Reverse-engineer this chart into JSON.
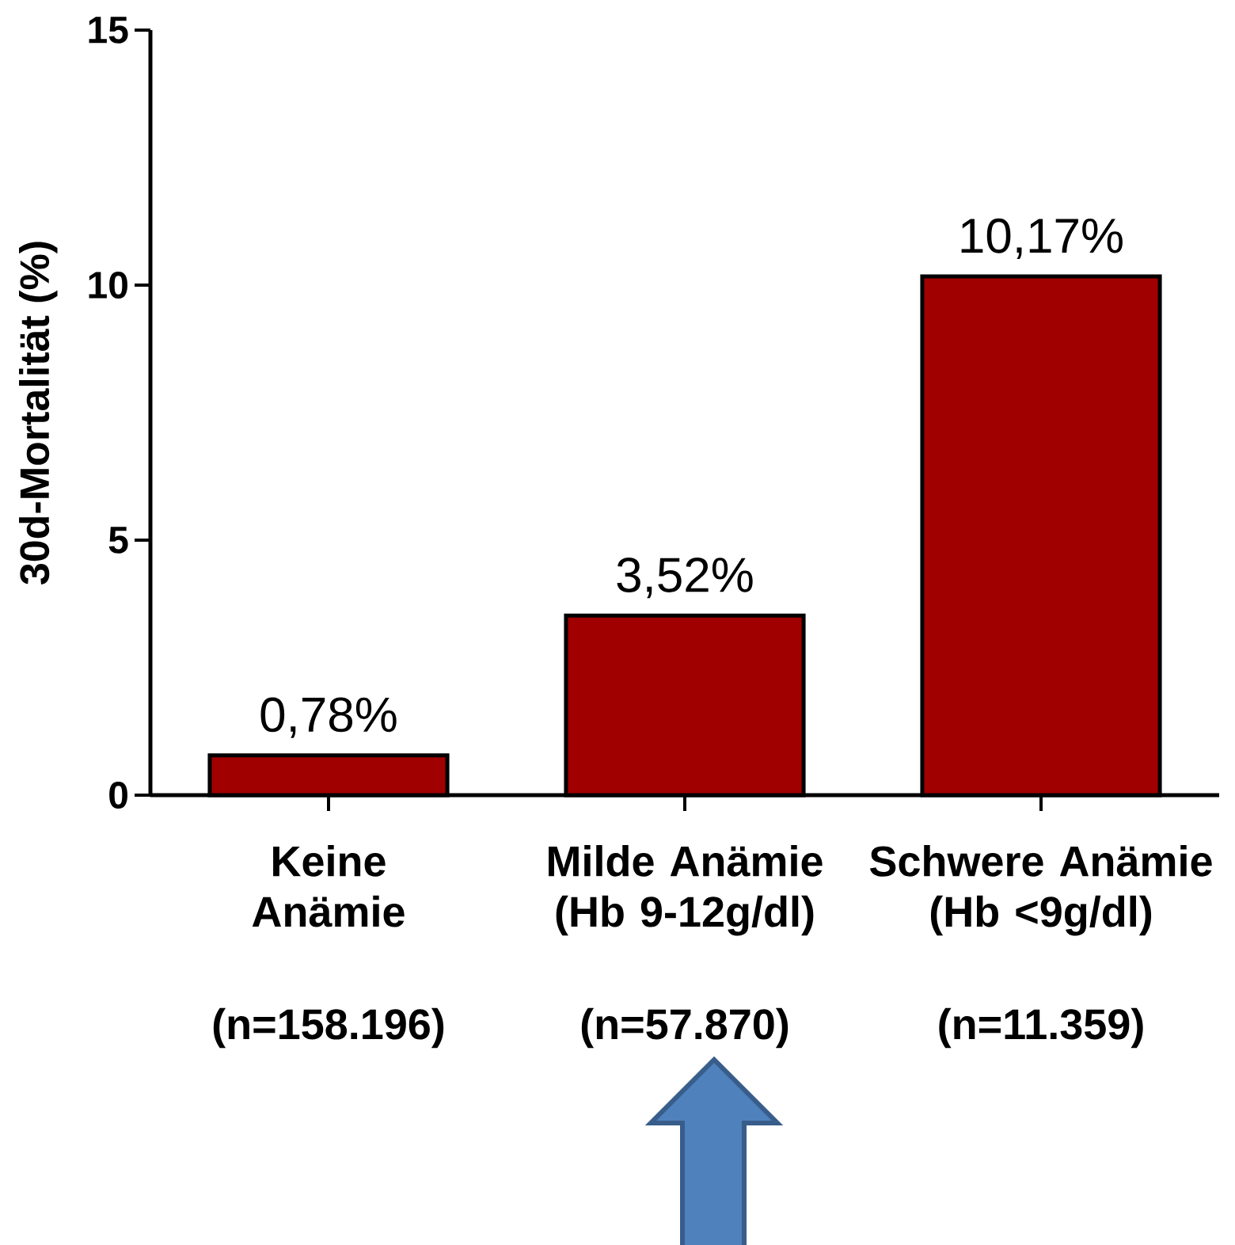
{
  "chart_data": {
    "type": "bar",
    "ylabel": "30d-Mortalität (%)",
    "categories": [
      "Keine\nAnämie",
      "Milde Anämie\n(Hb 9-12g/dl)",
      "Schwere Anämie\n(Hb <9g/dl)"
    ],
    "values": [
      0.78,
      3.52,
      10.17
    ],
    "value_labels": [
      "0,78%",
      "3,52%",
      "10,17%"
    ],
    "color": "#a00000",
    "ylim": [
      0,
      15
    ],
    "yticks": [
      0,
      5,
      10,
      15
    ],
    "annotations": [
      "(n=158.196)",
      "(n=57.870)",
      "(n=11.359)"
    ]
  }
}
